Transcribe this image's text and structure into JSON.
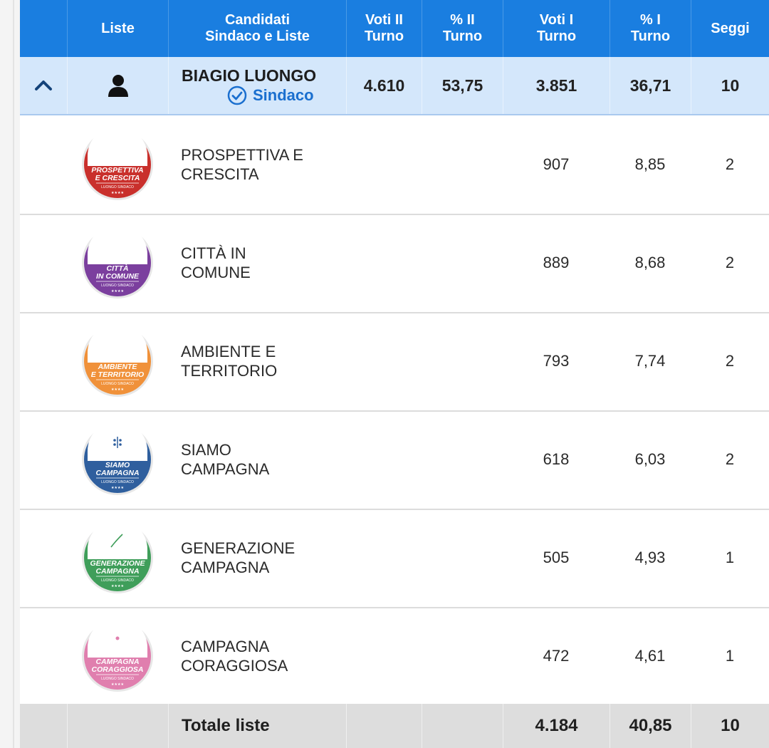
{
  "header": {
    "liste": "Liste",
    "candidati": "Candidati\nSindaco e Liste",
    "voti2": "Voti II\nTurno",
    "pct2": "% II\nTurno",
    "voti1": "Voti I\nTurno",
    "pct1": "% I\nTurno",
    "seggi": "Seggi"
  },
  "candidate": {
    "name": "BIAGIO LUONGO",
    "role": "Sindaco",
    "voti2": "4.610",
    "pct2": "53,75",
    "voti1": "3.851",
    "pct1": "36,71",
    "seggi": "10",
    "icons": [
      "chevron-up-icon",
      "person-icon",
      "check-circle-icon"
    ]
  },
  "lists": [
    {
      "name_l1": "PROSPETTIVA E",
      "name_l2": "CRESCITA",
      "voti1": "907",
      "pct1": "8,85",
      "seggi": "2",
      "logo_l1": "PROSPETTIVA",
      "logo_l2": "E CRESCITA",
      "logo_sub": "LUONGO SINDACO",
      "color": "#c9302c",
      "symbol": "bell-icon"
    },
    {
      "name_l1": "CITTÀ IN",
      "name_l2": "COMUNE",
      "voti1": "889",
      "pct1": "8,68",
      "seggi": "2",
      "logo_l1": "CITTÀ",
      "logo_l2": "IN COMUNE",
      "logo_sub": "LUONGO SINDACO",
      "color": "#7b3f9e",
      "symbol": "flag-icon"
    },
    {
      "name_l1": "AMBIENTE E",
      "name_l2": "TERRITORIO",
      "voti1": "793",
      "pct1": "7,74",
      "seggi": "2",
      "logo_l1": "AMBIENTE",
      "logo_l2": "E TERRITORIO",
      "logo_sub": "LUONGO SINDACO",
      "color": "#f0913a",
      "symbol": "heart-icon"
    },
    {
      "name_l1": "SIAMO",
      "name_l2": "CAMPAGNA",
      "voti1": "618",
      "pct1": "6,03",
      "seggi": "2",
      "logo_l1": "SIAMO",
      "logo_l2": "CAMPAGNA",
      "logo_sub": "LUONGO SINDACO",
      "color": "#2f5f9e",
      "symbol": "ladybug-icon"
    },
    {
      "name_l1": "GENERAZIONE",
      "name_l2": "CAMPAGNA",
      "voti1": "505",
      "pct1": "4,93",
      "seggi": "1",
      "logo_l1": "GENERAZIONE",
      "logo_l2": "CAMPAGNA",
      "logo_sub": "LUONGO SINDACO",
      "color": "#3f9e5a",
      "symbol": "leaf-icon"
    },
    {
      "name_l1": "CAMPAGNA",
      "name_l2": "CORAGGIOSA",
      "voti1": "472",
      "pct1": "4,61",
      "seggi": "1",
      "logo_l1": "CAMPAGNA",
      "logo_l2": "CORAGGIOSA",
      "logo_sub": "LUONGO SINDACO",
      "color": "#e07fae",
      "symbol": "flower-icon"
    }
  ],
  "totals": {
    "label": "Totale liste",
    "voti1": "4.184",
    "pct1": "40,85",
    "seggi": "10"
  }
}
